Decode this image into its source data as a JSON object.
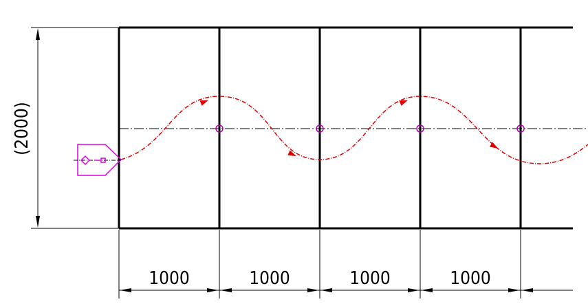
{
  "drawing": {
    "height_dimension_label": "(2000)",
    "bay_labels": [
      "1000",
      "1000",
      "1000",
      "1000"
    ],
    "colors": {
      "structure": "#000000",
      "path": "#e00000",
      "machine": "#e000e0",
      "nodes": "#b000b0"
    },
    "icons": {
      "machine": "machine-outline-icon",
      "arrow": "path-direction-arrow-icon"
    }
  }
}
